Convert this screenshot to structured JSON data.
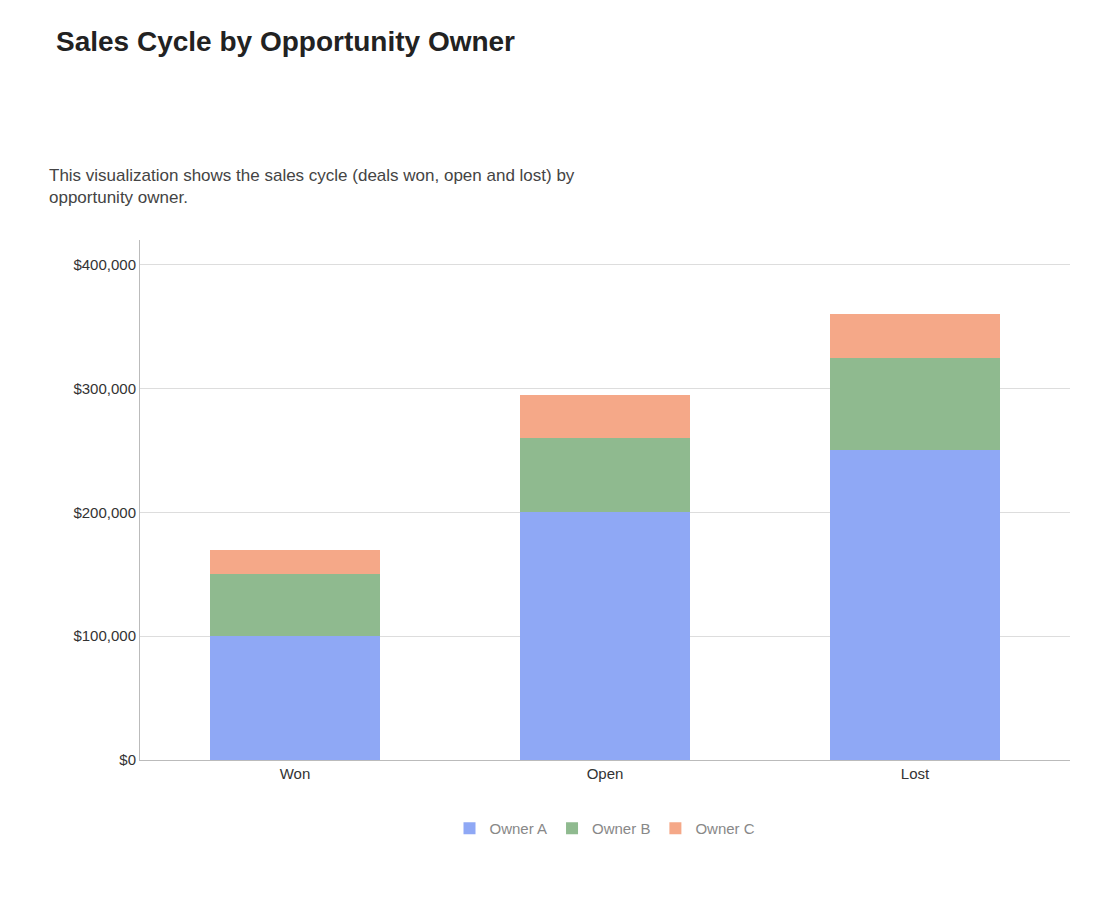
{
  "chart_data": {
    "type": "bar",
    "title": "Sales Cycle by Opportunity Owner",
    "subtitle": "This visualization shows the sales cycle (deals won, open and lost) by\nopportunity owner.",
    "categories": [
      "Won",
      "Open",
      "Lost"
    ],
    "series": [
      {
        "name": "Owner A",
        "color": "#8FA8F5",
        "values": [
          100000,
          200000,
          250000
        ]
      },
      {
        "name": "Owner B",
        "color": "#8FBA8F",
        "values": [
          50000,
          60000,
          75000
        ]
      },
      {
        "name": "Owner C",
        "color": "#F5A888",
        "values": [
          20000,
          35000,
          35000
        ]
      }
    ],
    "stacked": true,
    "ylim": [
      0,
      420000
    ],
    "yticks": [
      {
        "value": 0,
        "label": "$0"
      },
      {
        "value": 100000,
        "label": "$100,000"
      },
      {
        "value": 200000,
        "label": "$200,000"
      },
      {
        "value": 300000,
        "label": "$300,000"
      },
      {
        "value": 400000,
        "label": "$400,000"
      }
    ],
    "grid": true,
    "legend": "bottom"
  }
}
